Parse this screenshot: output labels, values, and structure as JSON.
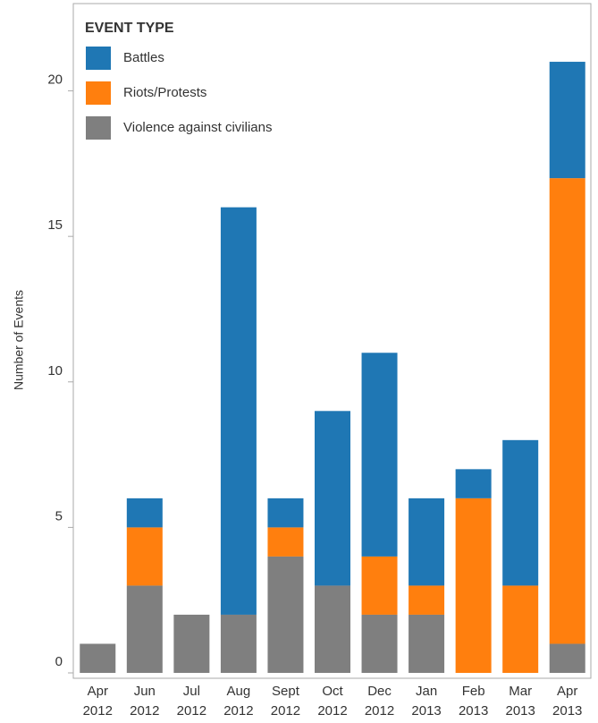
{
  "chart_data": {
    "type": "stacked_bar",
    "y_label": "Number of Events",
    "legend_title": "EVENT TYPE",
    "categories": [
      "Apr 2012",
      "Jun 2012",
      "Jul 2012",
      "Aug 2012",
      "Sept 2012",
      "Oct 2012",
      "Dec 2012",
      "Jan 2013",
      "Feb 2013",
      "Mar 2013",
      "Apr 2013"
    ],
    "series": [
      {
        "name": "Battles",
        "color": "#1f77b4",
        "values": [
          0,
          1,
          0,
          14,
          1,
          6,
          7,
          3,
          1,
          5,
          4
        ]
      },
      {
        "name": "Riots/Protests",
        "color": "#ff7f0e",
        "values": [
          0,
          2,
          0,
          0,
          1,
          0,
          2,
          1,
          6,
          3,
          16
        ]
      },
      {
        "name": "Violence against civilians",
        "color": "#7f7f7f",
        "values": [
          1,
          3,
          2,
          2,
          4,
          3,
          2,
          2,
          0,
          0,
          1
        ]
      }
    ],
    "ylim": [
      0,
      23
    ],
    "yticks": [
      0,
      5,
      10,
      15,
      20
    ],
    "legend_position": "upper left"
  }
}
